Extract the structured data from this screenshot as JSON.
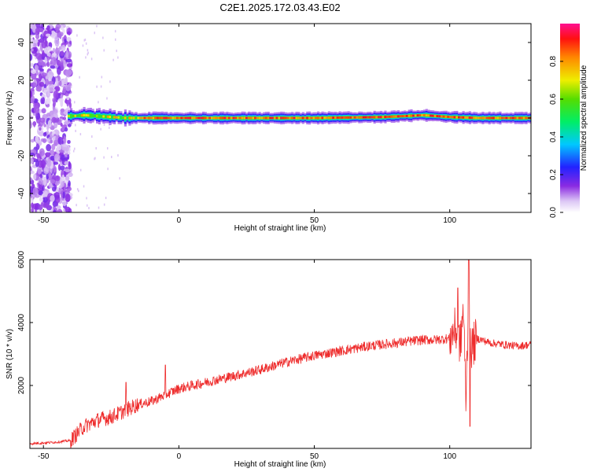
{
  "title": "C2E1.2025.172.03.43.E02",
  "chart_data": [
    {
      "type": "heatmap",
      "xlabel": "Height of straight line (km)",
      "ylabel": "Frequency (Hz)",
      "xlim": [
        -55,
        130
      ],
      "ylim": [
        -50,
        50
      ],
      "x_ticks": [
        -50,
        0,
        50,
        100
      ],
      "y_ticks": [
        -40,
        -20,
        0,
        20,
        40
      ],
      "colorbar": {
        "label": "Normalized spectral amplitude",
        "range": [
          0,
          1
        ],
        "ticks": [
          0.0,
          0.2,
          0.4,
          0.6,
          0.8
        ]
      },
      "noise_region_x": [
        -55,
        -40
      ],
      "signal_band": {
        "center_freq_hz": [
          [
            -40,
            1
          ],
          [
            -35,
            1.5
          ],
          [
            -30,
            1
          ],
          [
            -25,
            0.5
          ],
          [
            -20,
            0
          ],
          [
            0,
            0
          ],
          [
            25,
            0
          ],
          [
            50,
            0
          ],
          [
            75,
            0.5
          ],
          [
            90,
            1.5
          ],
          [
            100,
            0.5
          ],
          [
            110,
            0
          ],
          [
            130,
            0
          ]
        ],
        "half_width_hz": 3
      }
    },
    {
      "type": "line",
      "xlabel": "Height of straight line (km)",
      "ylabel": "SNR (10 * v/v)",
      "xlim": [
        -55,
        130
      ],
      "ylim": [
        0,
        6000
      ],
      "x_ticks": [
        -50,
        0,
        50,
        100
      ],
      "y_ticks": [
        2000,
        4000,
        6000
      ],
      "line_color": "#ee2c2c",
      "x": [
        -55,
        -45,
        -40,
        -35,
        -30,
        -25,
        -20,
        -15,
        -10,
        -5,
        0,
        10,
        20,
        30,
        40,
        50,
        60,
        70,
        80,
        90,
        95,
        100,
        102,
        104,
        105,
        106,
        107,
        108,
        110,
        115,
        120,
        125,
        130
      ],
      "y": [
        150,
        200,
        250,
        700,
        900,
        1000,
        1200,
        1400,
        1500,
        1700,
        1900,
        2100,
        2300,
        2500,
        2750,
        2950,
        3100,
        3250,
        3350,
        3450,
        3450,
        3500,
        3800,
        3300,
        4500,
        1500,
        5000,
        3200,
        3500,
        3350,
        3300,
        3250,
        3300
      ],
      "spikes": [
        {
          "x": -19.5,
          "y": 2100
        },
        {
          "x": -5,
          "y": 2650
        },
        {
          "x": 103,
          "y": 5100
        },
        {
          "x": 107,
          "y": 6000
        },
        {
          "x": 107.5,
          "y": 700
        }
      ]
    }
  ]
}
